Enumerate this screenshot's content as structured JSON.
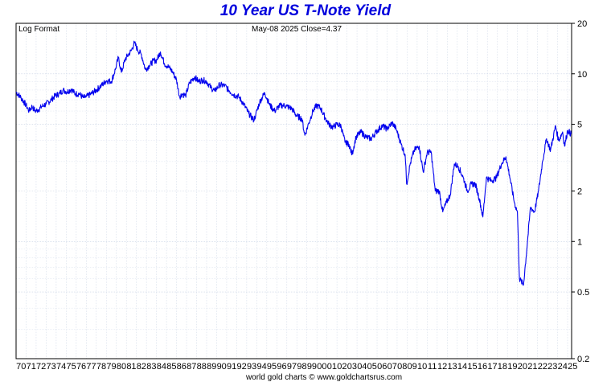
{
  "chart_data": {
    "type": "line",
    "title": "10 Year US T-Note Yield",
    "scale_label": "Log Format",
    "info": "May-08  2025   Close=4.37",
    "footer": "world gold charts © www.goldchartsrus.com",
    "y_scale": "log",
    "ylim": [
      0.2,
      20
    ],
    "y_ticks": [
      20,
      10,
      5,
      2,
      1,
      0.5,
      0.2
    ],
    "y_tick_labels": [
      "20",
      "10",
      "5",
      "2",
      "1",
      "0.5",
      "0.2"
    ],
    "xlim": [
      1970,
      2025.4
    ],
    "x_tick_labels": [
      "70",
      "71",
      "72",
      "73",
      "74",
      "75",
      "76",
      "77",
      "78",
      "79",
      "80",
      "81",
      "82",
      "83",
      "84",
      "85",
      "86",
      "87",
      "88",
      "89",
      "90",
      "91",
      "92",
      "93",
      "94",
      "95",
      "96",
      "97",
      "98",
      "99",
      "00",
      "01",
      "02",
      "03",
      "04",
      "05",
      "06",
      "07",
      "08",
      "09",
      "10",
      "11",
      "12",
      "13",
      "14",
      "15",
      "16",
      "17",
      "18",
      "19",
      "20",
      "21",
      "22",
      "23",
      "24",
      "25"
    ],
    "grid": true,
    "line_color": "#0000ee",
    "series": [
      {
        "x": [
          1970.0,
          1970.5,
          1971.0,
          1971.3,
          1971.6,
          1971.9,
          1972.2,
          1972.6,
          1973.0,
          1973.5,
          1973.9,
          1974.3,
          1974.7,
          1975.1,
          1975.5,
          1975.9,
          1976.3,
          1976.7,
          1977.0,
          1977.5,
          1978.0,
          1978.5,
          1979.0,
          1979.5,
          1979.9,
          1980.2,
          1980.5,
          1980.9,
          1981.2,
          1981.5,
          1981.8,
          1982.1,
          1982.5,
          1982.9,
          1983.3,
          1983.7,
          1984.0,
          1984.4,
          1984.8,
          1985.2,
          1985.6,
          1986.0,
          1986.3,
          1986.6,
          1986.9,
          1987.3,
          1987.8,
          1988.2,
          1988.6,
          1989.0,
          1989.4,
          1989.8,
          1990.3,
          1990.8,
          1991.2,
          1991.7,
          1992.2,
          1992.7,
          1993.2,
          1993.7,
          1993.9,
          1994.3,
          1994.8,
          1995.3,
          1995.8,
          1996.2,
          1996.6,
          1997.0,
          1997.5,
          1998.0,
          1998.5,
          1998.8,
          1999.2,
          1999.6,
          2000.0,
          2000.4,
          2000.8,
          2001.2,
          2001.6,
          2002.0,
          2002.4,
          2002.8,
          2003.2,
          2003.5,
          2003.9,
          2004.4,
          2004.9,
          2005.4,
          2005.9,
          2006.5,
          2007.0,
          2007.5,
          2007.9,
          2008.4,
          2008.8,
          2008.95,
          2009.3,
          2009.7,
          2010.2,
          2010.6,
          2011.0,
          2011.4,
          2011.8,
          2012.2,
          2012.55,
          2012.9,
          2013.3,
          2013.7,
          2014.1,
          2014.6,
          2015.0,
          2015.4,
          2015.8,
          2016.2,
          2016.55,
          2016.9,
          2017.4,
          2017.9,
          2018.4,
          2018.85,
          2019.2,
          2019.7,
          2020.0,
          2020.2,
          2020.6,
          2021.0,
          2021.3,
          2021.7,
          2022.1,
          2022.5,
          2022.9,
          2023.3,
          2023.8,
          2024.1,
          2024.5,
          2024.7,
          2025.0,
          2025.35
        ],
        "y": [
          7.8,
          7.2,
          6.5,
          6.0,
          6.4,
          6.0,
          6.1,
          6.4,
          6.6,
          7.0,
          7.4,
          7.6,
          8.0,
          7.8,
          8.1,
          7.6,
          7.6,
          7.2,
          7.3,
          7.6,
          8.0,
          8.5,
          9.1,
          9.0,
          10.6,
          12.5,
          10.2,
          12.3,
          13.0,
          13.8,
          15.3,
          14.0,
          13.0,
          10.6,
          11.2,
          12.0,
          12.0,
          13.5,
          11.5,
          11.0,
          10.3,
          9.2,
          7.3,
          7.6,
          7.4,
          8.8,
          9.6,
          9.0,
          9.2,
          9.0,
          8.3,
          7.9,
          8.6,
          8.5,
          8.0,
          7.5,
          7.3,
          6.6,
          5.8,
          5.3,
          5.7,
          6.8,
          7.7,
          6.5,
          6.0,
          6.4,
          6.5,
          6.4,
          6.2,
          5.6,
          5.4,
          4.3,
          5.1,
          6.0,
          6.5,
          6.2,
          5.5,
          5.0,
          4.8,
          5.0,
          4.9,
          3.9,
          3.8,
          3.3,
          4.2,
          4.5,
          4.2,
          4.1,
          4.5,
          4.9,
          4.7,
          5.1,
          4.7,
          3.8,
          3.3,
          2.2,
          2.9,
          3.5,
          3.7,
          2.6,
          3.4,
          3.4,
          2.0,
          2.0,
          1.5,
          1.7,
          1.9,
          2.9,
          2.8,
          2.4,
          2.0,
          2.2,
          2.2,
          1.8,
          1.4,
          2.4,
          2.3,
          2.4,
          2.9,
          3.2,
          2.5,
          1.7,
          1.5,
          0.6,
          0.55,
          1.0,
          1.6,
          1.5,
          2.0,
          3.0,
          4.1,
          3.5,
          4.9,
          4.0,
          4.5,
          3.7,
          4.6,
          4.37
        ]
      }
    ]
  }
}
